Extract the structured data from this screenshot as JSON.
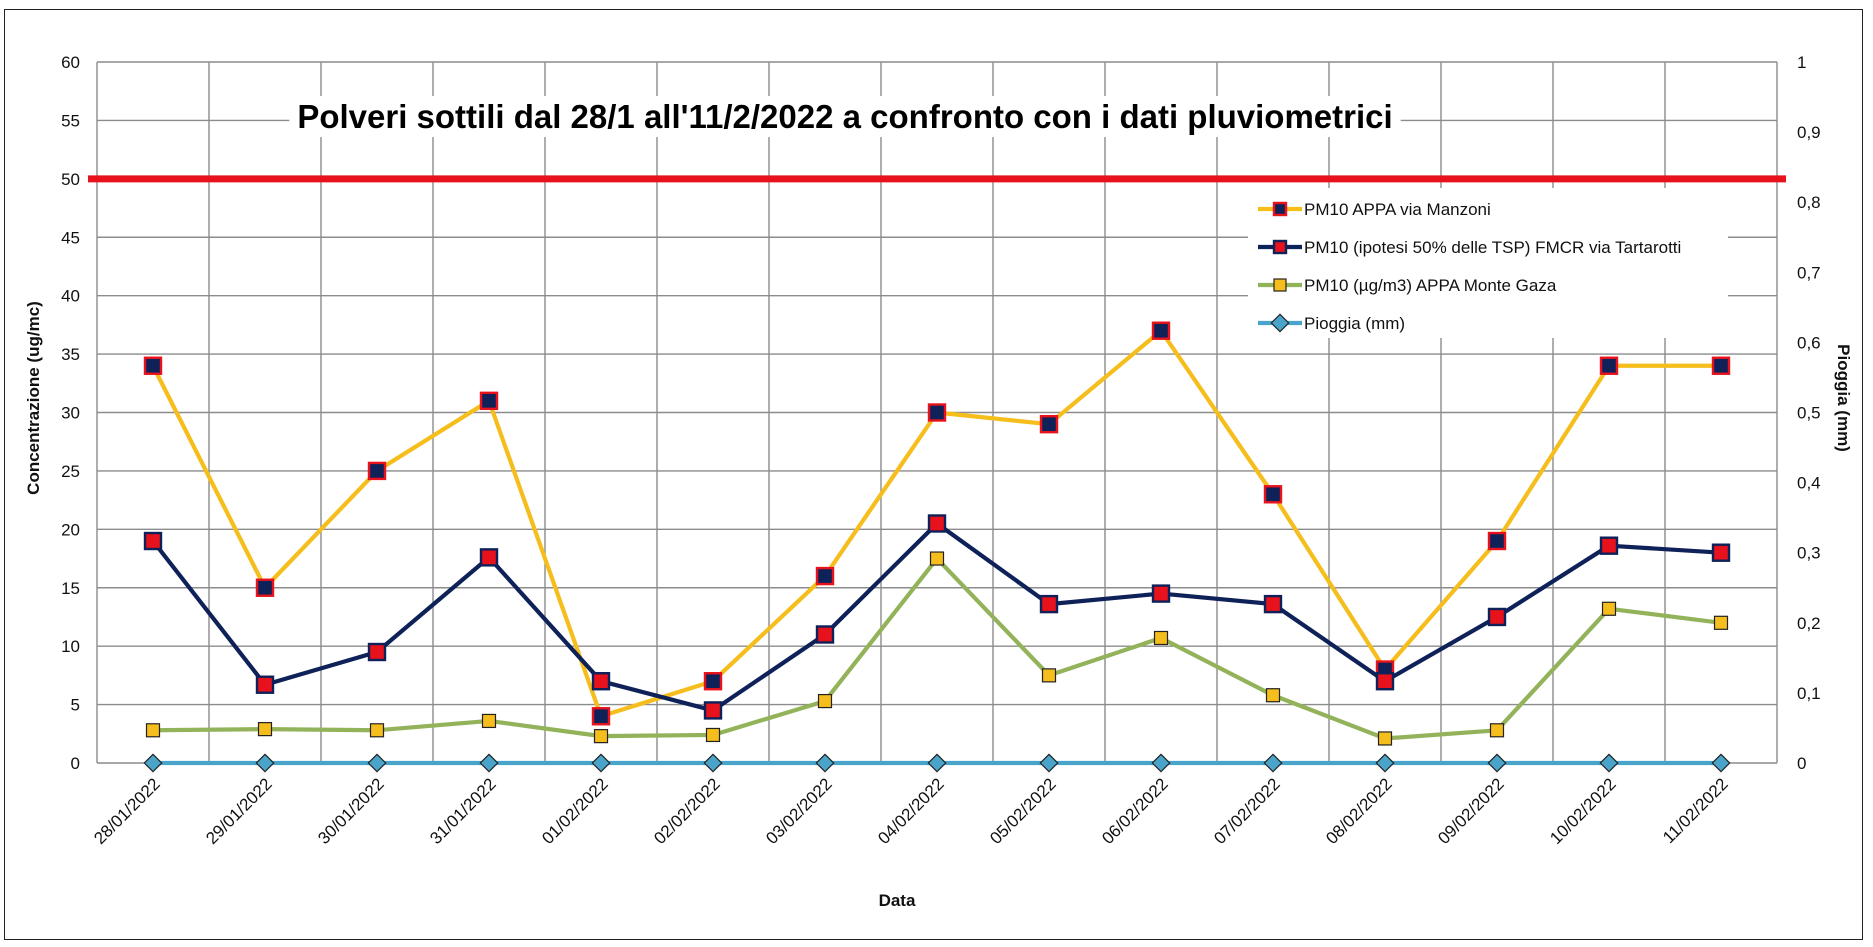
{
  "chart_data": {
    "type": "line",
    "title": "Polveri sottili dal 28/1 all'11/2/2022 a confronto con i dati pluviometrici",
    "xlabel": "Data",
    "ylabel": "Concentrazione (ug/mc)",
    "y2label": "Pioggia (mm)",
    "ylim": [
      0,
      60
    ],
    "y2lim": [
      0,
      1
    ],
    "yticks": [
      "0",
      "5",
      "10",
      "15",
      "20",
      "25",
      "30",
      "35",
      "40",
      "45",
      "50",
      "55",
      "60"
    ],
    "y2ticks": [
      "0",
      "0,1",
      "0,2",
      "0,3",
      "0,4",
      "0,5",
      "0,6",
      "0,7",
      "0,8",
      "0,9",
      "1"
    ],
    "grid": true,
    "legend_position": "top-right",
    "limit_line": {
      "value": 50,
      "color": "#e8121c"
    },
    "categories": [
      "28/01/2022",
      "29/01/2022",
      "30/01/2022",
      "31/01/2022",
      "01/02/2022",
      "02/02/2022",
      "03/02/2022",
      "04/02/2022",
      "05/02/2022",
      "06/02/2022",
      "07/02/2022",
      "08/02/2022",
      "09/02/2022",
      "10/02/2022",
      "11/02/2022"
    ],
    "series": [
      {
        "name": "PM10 APPA via Manzoni",
        "axis": "left",
        "line_color": "#f5be1c",
        "marker": "square",
        "marker_fill": "#0e2158",
        "marker_stroke": "#e8121c",
        "values": [
          34,
          15,
          25,
          31,
          4,
          7,
          16,
          30,
          29,
          37,
          23,
          8,
          19,
          34,
          34
        ]
      },
      {
        "name": "PM10 (ipotesi 50% delle TSP) FMCR  via Tartarotti",
        "axis": "left",
        "line_color": "#0e2158",
        "marker": "square",
        "marker_fill": "#e8121c",
        "marker_stroke": "#0e2158",
        "values": [
          19,
          6.7,
          9.5,
          17.6,
          7,
          4.5,
          11,
          20.5,
          13.6,
          14.5,
          13.6,
          7,
          12.5,
          18.6,
          18
        ]
      },
      {
        "name": "PM10 (µg/m3) APPA Monte Gaza",
        "axis": "left",
        "line_color": "#93b35a",
        "marker": "square",
        "marker_fill": "#f5be1c",
        "marker_stroke": "#222222",
        "values": [
          2.8,
          2.9,
          2.8,
          3.6,
          2.3,
          2.4,
          5.3,
          17.5,
          7.5,
          10.7,
          5.8,
          2.1,
          2.8,
          13.2,
          12
        ]
      },
      {
        "name": "Pioggia (mm)",
        "axis": "right",
        "line_color": "#4aa3c8",
        "marker": "diamond",
        "marker_fill": "#4aa3c8",
        "marker_stroke": "#222222",
        "values": [
          0,
          0,
          0,
          0,
          0,
          0,
          0,
          0,
          0,
          0,
          0,
          0,
          0,
          0,
          0
        ]
      }
    ]
  }
}
